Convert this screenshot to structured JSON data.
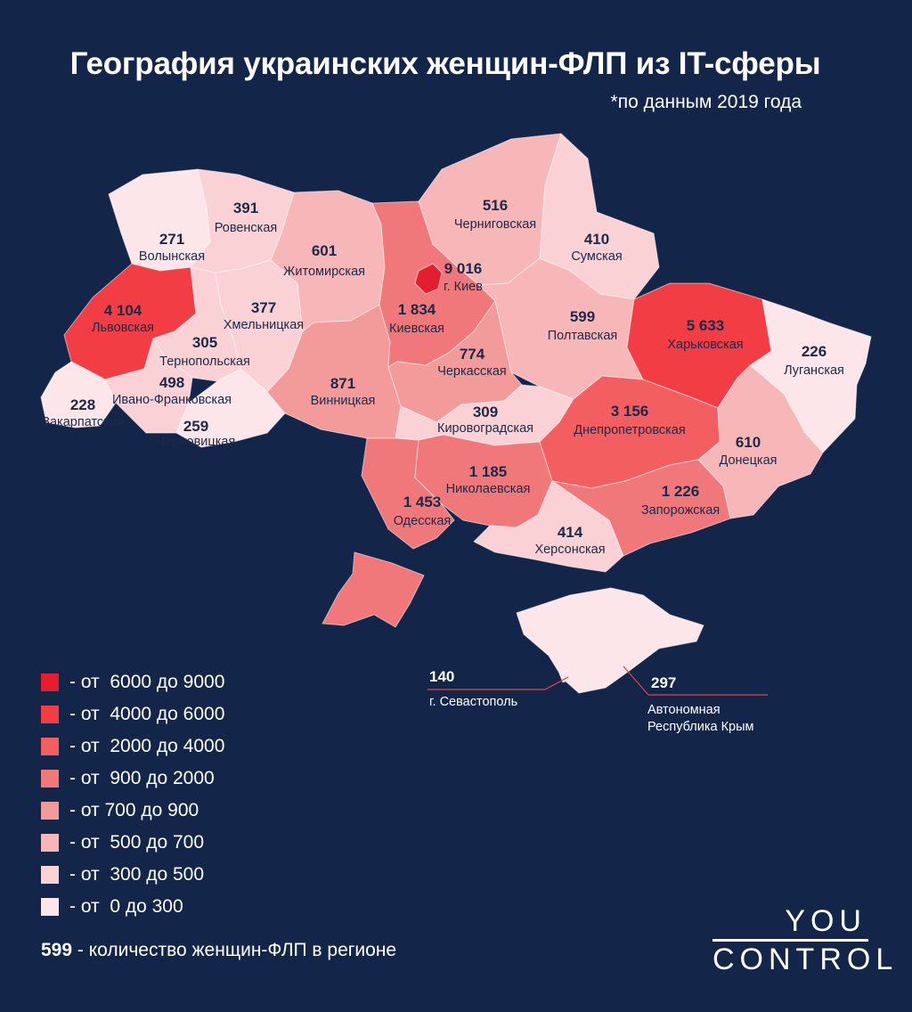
{
  "header": {
    "title": "География украинских женщин-ФЛП из IT-сферы",
    "subtitle": "*по данным 2019 года"
  },
  "colors": {
    "background": "#13264a",
    "bins": [
      "#e31e2e",
      "#f13d43",
      "#f35e60",
      "#f0787a",
      "#f39a9a",
      "#f7b7b8",
      "#fad1d4",
      "#fde6e9"
    ]
  },
  "regions": [
    {
      "id": "volyn",
      "name": "Волынская",
      "value": "271",
      "bin": 7
    },
    {
      "id": "rivne",
      "name": "Ровенская",
      "value": "391",
      "bin": 6
    },
    {
      "id": "lviv",
      "name": "Львовская",
      "value": "4 104",
      "bin": 1
    },
    {
      "id": "ternopil",
      "name": "Тернопольская",
      "value": "305",
      "bin": 6
    },
    {
      "id": "khmelnytskyi",
      "name": "Хмельницкая",
      "value": "377",
      "bin": 6
    },
    {
      "id": "zakarpattia",
      "name": "Закарпатская",
      "value": "228",
      "bin": 7
    },
    {
      "id": "ivano",
      "name": "Ивано-Франковская",
      "value": "498",
      "bin": 6
    },
    {
      "id": "chernivtsi",
      "name": "Черновицкая",
      "value": "259",
      "bin": 7
    },
    {
      "id": "zhytomyr",
      "name": "Житомирская",
      "value": "601",
      "bin": 5
    },
    {
      "id": "vinnytsia",
      "name": "Винницкая",
      "value": "871",
      "bin": 4
    },
    {
      "id": "kyivobl",
      "name": "Киевская",
      "value": "1 834",
      "bin": 3
    },
    {
      "id": "kyiv",
      "name": "г. Киев",
      "value": "9 016",
      "bin": 0
    },
    {
      "id": "chernihiv",
      "name": "Черниговская",
      "value": "516",
      "bin": 5
    },
    {
      "id": "sumy",
      "name": "Сумская",
      "value": "410",
      "bin": 6
    },
    {
      "id": "poltava",
      "name": "Полтавская",
      "value": "599",
      "bin": 5
    },
    {
      "id": "kharkiv",
      "name": "Харьковская",
      "value": "5 633",
      "bin": 1
    },
    {
      "id": "luhansk",
      "name": "Луганская",
      "value": "226",
      "bin": 7
    },
    {
      "id": "cherkasy",
      "name": "Черкасская",
      "value": "774",
      "bin": 4
    },
    {
      "id": "kirovohrad",
      "name": "Кировоградская",
      "value": "309",
      "bin": 6
    },
    {
      "id": "dnipro",
      "name": "Днепропетровская",
      "value": "3 156",
      "bin": 2
    },
    {
      "id": "donetsk",
      "name": "Донецкая",
      "value": "610",
      "bin": 5
    },
    {
      "id": "odesa",
      "name": "Одесская",
      "value": "1 453",
      "bin": 3
    },
    {
      "id": "mykolaiv",
      "name": "Николаевская",
      "value": "1 185",
      "bin": 3
    },
    {
      "id": "zaporizhzhia",
      "name": "Запорожская",
      "value": "1 226",
      "bin": 3
    },
    {
      "id": "kherson",
      "name": "Херсонская",
      "value": "414",
      "bin": 6
    },
    {
      "id": "crimea",
      "name": "Автономная Республика Крым",
      "name_lines": [
        "Автономная",
        "Республика Крым"
      ],
      "value": "297",
      "bin": 7
    },
    {
      "id": "sevastopol",
      "name": "г. Севастополь",
      "value": "140",
      "bin": 7
    }
  ],
  "legend": {
    "items": [
      {
        "label": "- от  6000 до 9000",
        "bin": 0
      },
      {
        "label": "- от  4000 до 6000",
        "bin": 1
      },
      {
        "label": "- от  2000 до 4000",
        "bin": 2
      },
      {
        "label": "- от  900 до 2000",
        "bin": 3
      },
      {
        "label": "- от 700 до 900",
        "bin": 4
      },
      {
        "label": "- от  500 до 700",
        "bin": 5
      },
      {
        "label": "- от  300 до 500",
        "bin": 6
      },
      {
        "label": "- от  0 до 300",
        "bin": 7
      }
    ]
  },
  "footnote": {
    "value": "599",
    "text": " - количество женщин-ФЛП в регионе"
  },
  "logo": {
    "top": "YOU",
    "bottom": "CONTROL"
  }
}
